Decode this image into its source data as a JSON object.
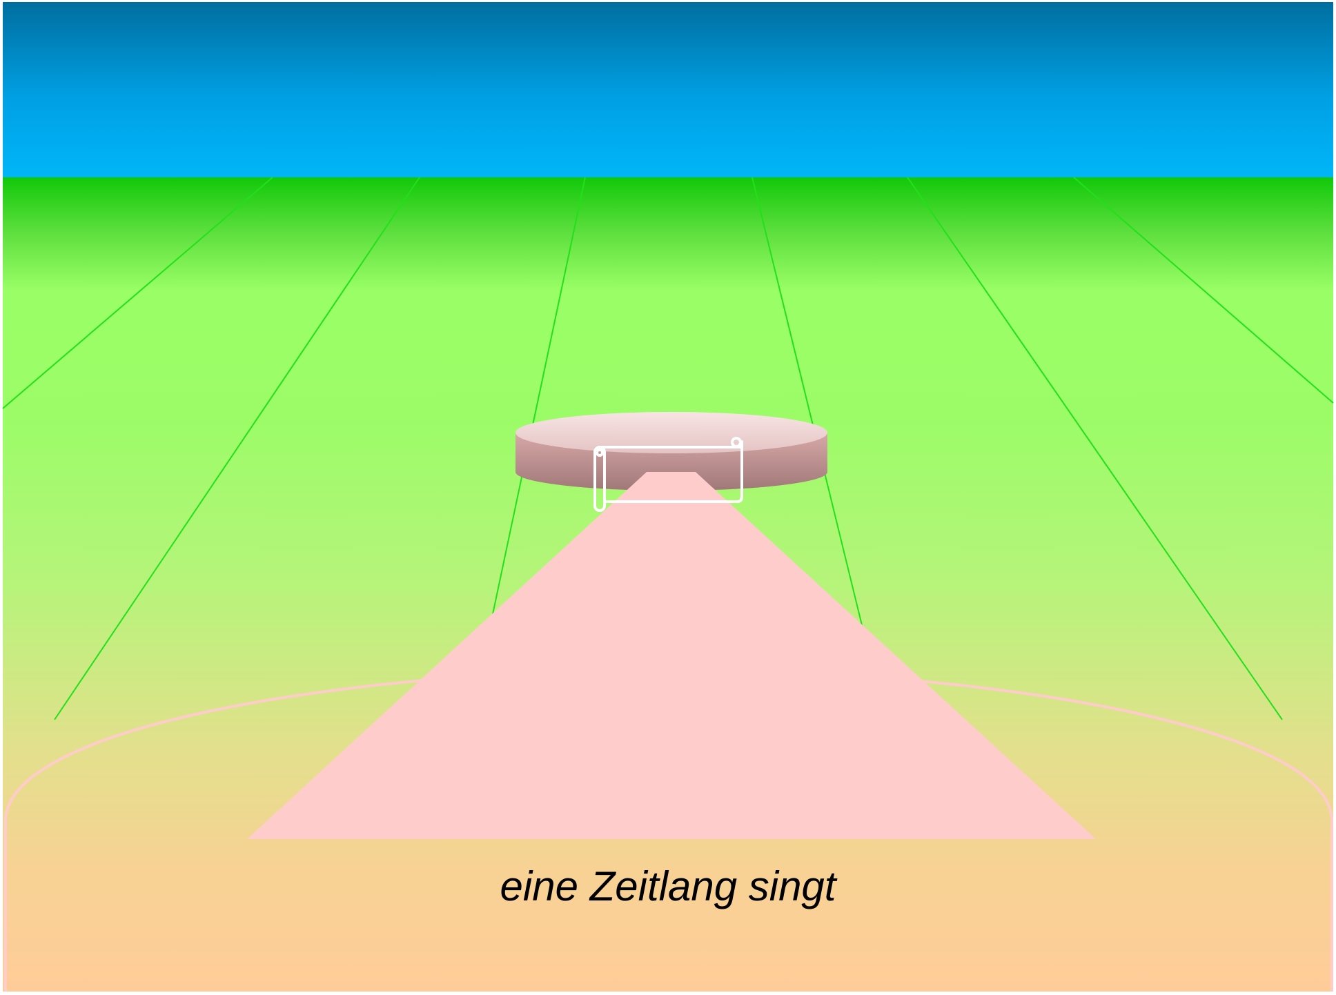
{
  "caption": {
    "text": "eine Zeitlang singt"
  },
  "colors": {
    "sky_top": "#006e9f",
    "sky_bottom": "#00b4f8",
    "ground_top": "#12c80a",
    "ground_mid": "#9aff66",
    "ground_bottom": "#ffcc99",
    "field_lines": "#22e01a",
    "path": "#ffcccc",
    "stage_top": "#f4dcdc",
    "stage_side": "#c89090",
    "outline": "#ffffff"
  },
  "icons": {
    "scroll": "scroll-icon"
  }
}
